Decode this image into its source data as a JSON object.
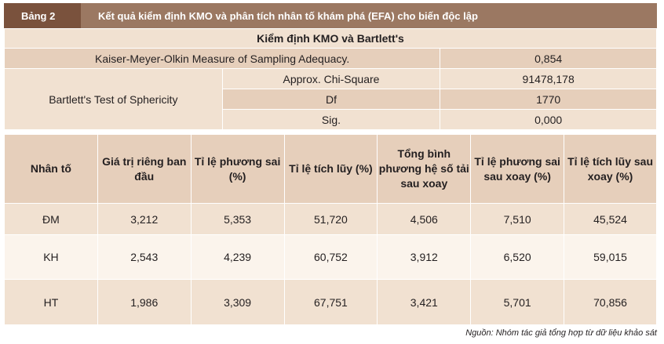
{
  "header": {
    "tag": "Bảng 2",
    "title": "Kết quả kiểm định KMO và phân tích nhân tố khám phá (EFA) cho biến độc lập"
  },
  "kmo": {
    "title": "Kiểm định KMO và Bartlett's",
    "kmo_label": "Kaiser-Meyer-Olkin Measure of Sampling Adequacy.",
    "kmo_value": "0,854",
    "bartlett_label": "Bartlett's Test of Sphericity",
    "rows": [
      {
        "label": "Approx. Chi-Square",
        "value": "91478,178"
      },
      {
        "label": "Df",
        "value": "1770"
      },
      {
        "label": "Sig.",
        "value": "0,000"
      }
    ]
  },
  "efa": {
    "headers": [
      "Nhân tố",
      "Giá trị riêng ban đầu",
      "Tỉ lệ phương sai (%)",
      "Tỉ lệ tích lũy (%)",
      "Tổng bình phương hệ số tải sau xoay",
      "Tỉ lệ phương sai sau xoay (%)",
      "Tỉ lệ tích lũy sau xoay (%)"
    ],
    "rows": [
      [
        "ĐM",
        "3,212",
        "5,353",
        "51,720",
        "4,506",
        "7,510",
        "45,524"
      ],
      [
        "KH",
        "2,543",
        "4,239",
        "60,752",
        "3,912",
        "6,520",
        "59,015"
      ],
      [
        "HT",
        "1,986",
        "3,309",
        "67,751",
        "3,421",
        "5,701",
        "70,856"
      ]
    ]
  },
  "source": "Nguồn: Nhóm tác giả tổng hợp từ dữ liệu khảo sát"
}
